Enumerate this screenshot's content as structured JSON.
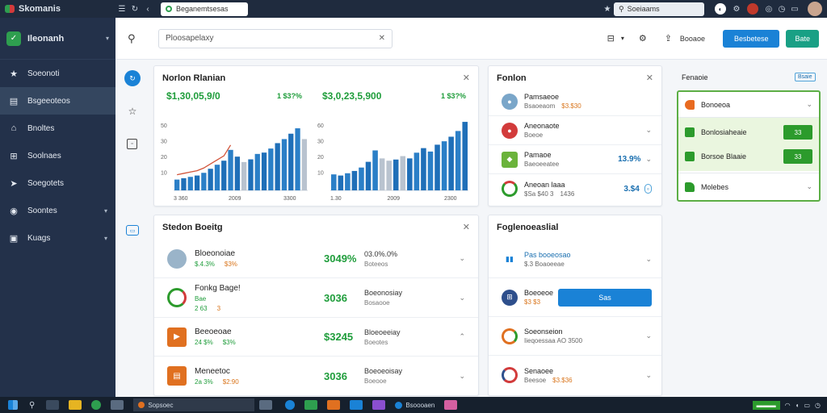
{
  "browser": {
    "brand": "Skomanis",
    "tab_label": "Beganemtsesas",
    "search_label": "Soeiaams"
  },
  "sidebar": {
    "title": "Ileonanh",
    "items": [
      {
        "label": "Soeonoti",
        "icon": "★"
      },
      {
        "label": "Bsgeeoteos",
        "icon": "▤"
      },
      {
        "label": "Bnoltes",
        "icon": "⌂"
      },
      {
        "label": "Soolnaes",
        "icon": "⊞"
      },
      {
        "label": "Soegotets",
        "icon": "➤"
      },
      {
        "label": "Soontes",
        "icon": "◉",
        "chevron": true
      },
      {
        "label": "Kuags",
        "icon": "▣",
        "chevron": true
      }
    ]
  },
  "topbar": {
    "filter_value": "Ploosapelaxy",
    "tool_label": "Booaoe",
    "primary_button": "Besbetese",
    "secondary_button": "Bate"
  },
  "card1": {
    "title": "Norlon Rlanian",
    "left_value": "$1,30,05,9/0",
    "left_pct": "1 $3?%",
    "right_value": "$3,0,23,5,900",
    "right_pct": "1 $3?%",
    "left_y_ticks": [
      "50",
      "30",
      "20",
      "10"
    ],
    "left_x_ticks": [
      "3 360",
      "2009",
      "3300"
    ],
    "right_y_ticks": [
      "60",
      "30",
      "20",
      "10"
    ],
    "right_x_ticks": [
      "1.30",
      "2009",
      "2300"
    ]
  },
  "card2": {
    "title": "Stedon Boeitg",
    "rows": [
      {
        "title": "Bloeonoiae",
        "sub_a": "$.4.3%",
        "sub_b": "$3%",
        "value": "3049%",
        "mid_t": "03.0%.0%",
        "mid_s": "Boteeos",
        "icon_color": "#9ab4c9"
      },
      {
        "title": "Fonkg Bage!",
        "sub_a": "Bae",
        "sub_b": "",
        "sub_c": "2 63",
        "sub_d": "3",
        "value": "3036",
        "mid_t": "Boeonosiay",
        "mid_s": "Bosaooe",
        "icon_color": "#2c9b2c"
      },
      {
        "title": "Beeoeoae",
        "sub_a": "24 $%",
        "sub_b": "$3%",
        "value": "$3245",
        "mid_t": "Bloeoeeiay",
        "mid_s": "Boeotes",
        "icon_color": "#e07020"
      },
      {
        "title": "Meneetoc",
        "sub_a": "2a 3%",
        "sub_b": "$2:90",
        "value": "3036",
        "mid_t": "Boeoeoisay",
        "mid_s": "Boeooe",
        "icon_color": "#e07020"
      }
    ]
  },
  "card3": {
    "title": "Fonlon",
    "rows": [
      {
        "title": "Pamsaeoe",
        "sub_a": "Bsaoeaom",
        "sub_b": "$3.$30",
        "value": "",
        "icon_color": "#7aa6c9"
      },
      {
        "title": "Aneonaote",
        "sub_a": "Boeoe",
        "sub_b": "",
        "value": "",
        "icon_color": "#d23b3b"
      },
      {
        "title": "Pamaoe",
        "sub_a": "Baeoeeatee",
        "sub_b": "",
        "value": "13.9%",
        "icon_color": "#6bb33b"
      },
      {
        "title": "Aneoan laaa",
        "sub_a": "$Sa $40 3",
        "sub_b": "1436",
        "value": "3.$4",
        "icon_color": "#2c9b2c"
      }
    ]
  },
  "card4": {
    "title": "Foglenoeaslial",
    "button_label": "Sas",
    "rows": [
      {
        "title": "Pas booeosao",
        "sub_a": "$.3 Boaoeeae",
        "sub_b": "",
        "icon_color": "#1a82d6"
      },
      {
        "title": "Boeoeoe",
        "sub_a": "$3 $3",
        "sub_b": "",
        "icon_color": "#2e4f8c"
      },
      {
        "title": "Soeonseion",
        "sub_a": "Iieqoessaa AO 3500",
        "sub_b": "",
        "icon_color": "#e07020"
      },
      {
        "title": "Senaoee",
        "sub_a": "Beesoe",
        "sub_b": "$3.$36",
        "icon_color": "#d23b3b"
      }
    ]
  },
  "right_panel": {
    "title": "Fenaoie",
    "badge": "Bsaie",
    "rows": [
      {
        "label": "Bonoeoa",
        "chevron": true,
        "icon_color": "#e86a20"
      },
      {
        "label": "Bonlosiaheaie",
        "btn": "33",
        "icon_color": "#2c9b2c"
      },
      {
        "label": "Borsoe Blaaie",
        "btn": "33",
        "icon_color": "#2c9b2c"
      },
      {
        "label": "Molebes",
        "chevron": true,
        "icon_color": "#2c9b2c"
      }
    ]
  },
  "taskbar": {
    "search_label": "Sopsoec",
    "app_label": "Bsoooaen"
  },
  "chart_data": [
    {
      "type": "bar",
      "x": [
        1,
        2,
        3,
        4,
        5,
        6,
        7,
        8,
        9,
        10,
        11,
        12,
        13,
        14,
        15,
        16,
        17,
        18,
        19,
        20
      ],
      "series": [
        {
          "values": [
            8,
            9,
            10,
            11,
            13,
            16,
            19,
            22,
            30,
            25,
            21,
            23,
            27,
            28,
            31,
            35,
            38,
            42,
            46,
            38
          ]
        }
      ],
      "ylim": [
        0,
        55
      ]
    },
    {
      "type": "bar",
      "x": [
        1,
        2,
        3,
        4,
        5,
        6,
        7,
        8,
        9,
        10,
        11,
        12,
        13,
        14,
        15,
        16,
        17,
        18,
        19,
        20
      ],
      "series": [
        {
          "values": [
            14,
            13,
            15,
            17,
            20,
            25,
            35,
            28,
            26,
            27,
            30,
            28,
            33,
            37,
            34,
            40,
            43,
            47,
            52,
            60
          ]
        }
      ],
      "ylim": [
        0,
        65
      ]
    }
  ]
}
